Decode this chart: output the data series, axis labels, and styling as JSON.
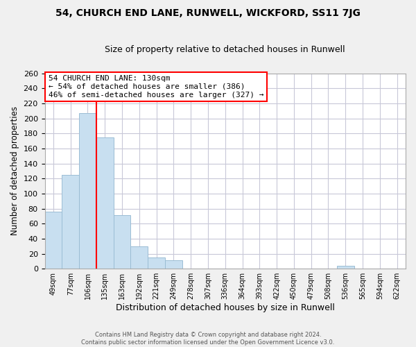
{
  "title1": "54, CHURCH END LANE, RUNWELL, WICKFORD, SS11 7JG",
  "title2": "Size of property relative to detached houses in Runwell",
  "xlabel": "Distribution of detached houses by size in Runwell",
  "ylabel": "Number of detached properties",
  "bar_labels": [
    "49sqm",
    "77sqm",
    "106sqm",
    "135sqm",
    "163sqm",
    "192sqm",
    "221sqm",
    "249sqm",
    "278sqm",
    "307sqm",
    "336sqm",
    "364sqm",
    "393sqm",
    "422sqm",
    "450sqm",
    "479sqm",
    "508sqm",
    "536sqm",
    "565sqm",
    "594sqm",
    "622sqm"
  ],
  "bar_values": [
    76,
    125,
    207,
    175,
    71,
    30,
    15,
    11,
    0,
    0,
    0,
    0,
    0,
    0,
    0,
    0,
    0,
    4,
    0,
    0,
    0
  ],
  "bar_color": "#c8dff0",
  "bar_edge_color": "#9bbdd4",
  "vline_x": 3,
  "vline_color": "red",
  "annotation_title": "54 CHURCH END LANE: 130sqm",
  "annotation_line1": "← 54% of detached houses are smaller (386)",
  "annotation_line2": "46% of semi-detached houses are larger (327) →",
  "annotation_box_color": "white",
  "annotation_box_edge": "red",
  "ylim": [
    0,
    260
  ],
  "yticks": [
    0,
    20,
    40,
    60,
    80,
    100,
    120,
    140,
    160,
    180,
    200,
    220,
    240,
    260
  ],
  "footer_line1": "Contains HM Land Registry data © Crown copyright and database right 2024.",
  "footer_line2": "Contains public sector information licensed under the Open Government Licence v3.0.",
  "background_color": "#f0f0f0",
  "plot_bg_color": "white",
  "grid_color": "#c8c8d8"
}
